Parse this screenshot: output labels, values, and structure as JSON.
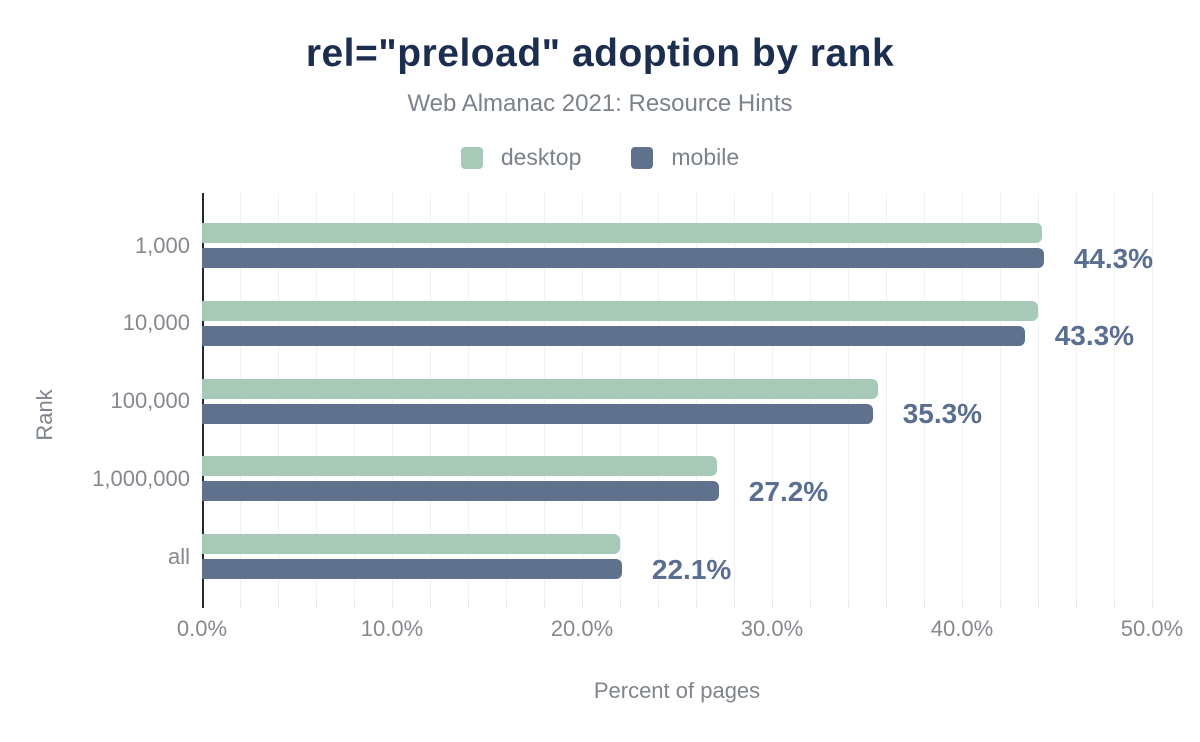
{
  "chart_data": {
    "type": "bar",
    "orientation": "horizontal",
    "title": "rel=\"preload\" adoption by rank",
    "subtitle": "Web Almanac 2021: Resource Hints",
    "categories": [
      "1,000",
      "10,000",
      "100,000",
      "1,000,000",
      "all"
    ],
    "series": [
      {
        "name": "desktop",
        "color": "#a6cab7",
        "values": [
          44.2,
          44.0,
          35.6,
          27.1,
          22.0
        ]
      },
      {
        "name": "mobile",
        "color": "#5f718c",
        "values": [
          44.3,
          43.3,
          35.3,
          27.2,
          22.1
        ]
      }
    ],
    "annotations": [
      "44.3%",
      "43.3%",
      "35.3%",
      "27.2%",
      "22.1%"
    ],
    "annotated_series": "mobile",
    "xlabel": "Percent of pages",
    "ylabel": "Rank",
    "xlim": [
      0,
      50
    ],
    "x_tick_labels": [
      "0.0%",
      "10.0%",
      "20.0%",
      "30.0%",
      "40.0%",
      "50.0%"
    ],
    "x_tick_values": [
      0,
      10,
      20,
      30,
      40,
      50
    ],
    "x_minor_grid_step_pct": 2,
    "grid": "vertical-minor",
    "legend_position": "top"
  },
  "colors": {
    "title": "#1c2e4f",
    "subtitle": "#7c828c",
    "tick_text": "#85898f",
    "annotation_text": "#5a6e91",
    "axis_line": "#23272f",
    "grid_line": "#f1f1f4",
    "background": "#ffffff"
  }
}
